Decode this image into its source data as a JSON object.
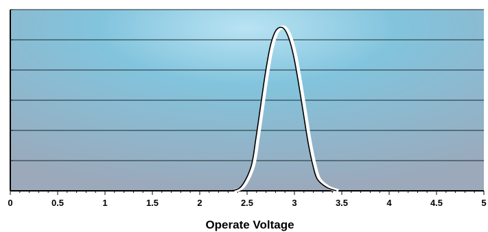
{
  "chart_data": {
    "type": "line",
    "title": "",
    "xlabel": "Operate Voltage",
    "ylabel": "",
    "xlim": [
      0,
      5
    ],
    "ylim": [
      0,
      1
    ],
    "x_ticks": [
      "0",
      "0.5",
      "1",
      "1.5",
      "2",
      "2.5",
      "3",
      "3.5",
      "4",
      "4.5",
      "5"
    ],
    "x_minor_tick_step": 0.1,
    "y_gridline_count": 6,
    "grid": true,
    "legend": "none",
    "background": {
      "center": "#b9e3f3",
      "mid": "#82c4dd",
      "edge": "#9ba9bb"
    },
    "series": [
      {
        "name": "",
        "line_color": "#000000",
        "halo_color": "#ffffff",
        "x": [
          2.35,
          2.45,
          2.55,
          2.6,
          2.65,
          2.7,
          2.75,
          2.8,
          2.85,
          2.9,
          2.95,
          3.0,
          3.05,
          3.1,
          3.15,
          3.2,
          3.25,
          3.35,
          3.45
        ],
        "y": [
          0.0,
          0.03,
          0.15,
          0.32,
          0.52,
          0.72,
          0.88,
          0.97,
          1.0,
          0.99,
          0.93,
          0.82,
          0.66,
          0.48,
          0.3,
          0.16,
          0.07,
          0.02,
          0.0
        ]
      }
    ]
  }
}
